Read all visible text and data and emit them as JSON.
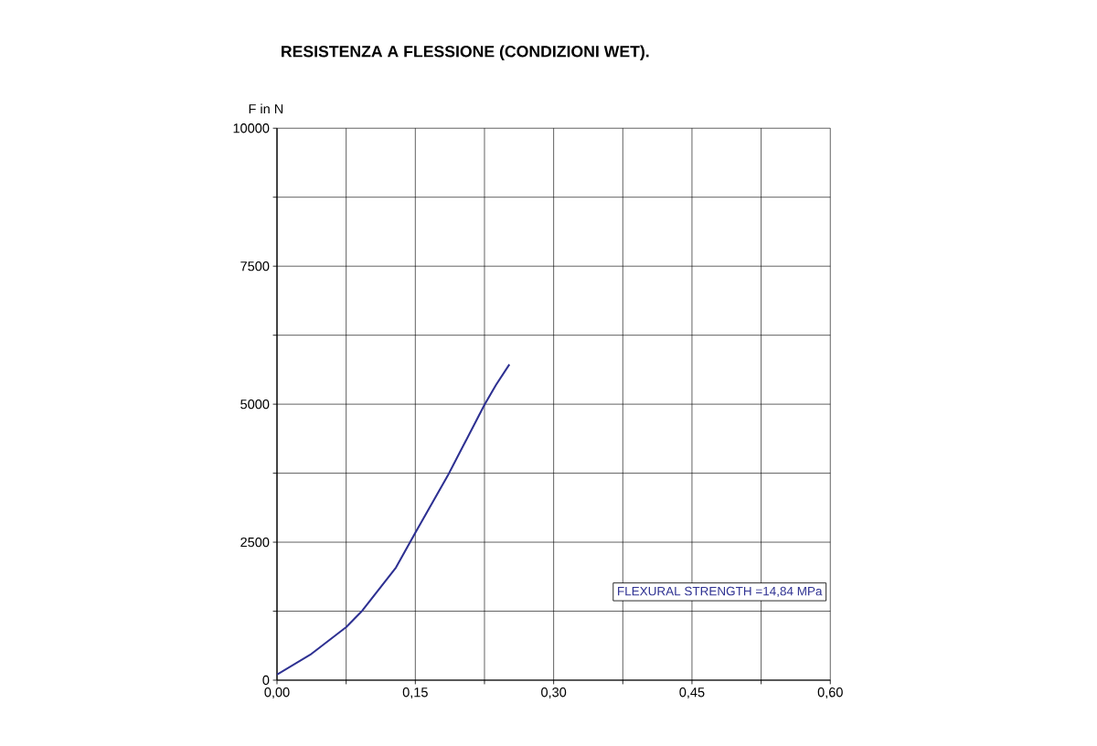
{
  "chart_data": {
    "type": "line",
    "title": "RESISTENZA A FLESSIONE (CONDIZIONI WET).",
    "ylabel": "F in N",
    "annotations": [
      "FLEXURAL STRENGTH =14,84 MPa"
    ],
    "x": [
      0,
      0.036,
      0.075,
      0.0925,
      0.129,
      0.15,
      0.185,
      0.225,
      0.2375,
      0.252
    ],
    "series": [
      {
        "color": "#2e3192",
        "values": [
          100,
          460,
          960,
          1260,
          2040,
          2670,
          3700,
          4990,
          5350,
          5720
        ]
      }
    ],
    "xlim": [
      0,
      0.6
    ],
    "ylim": [
      0,
      10000
    ],
    "xticks": [
      {
        "value": 0,
        "label": "0,00"
      },
      {
        "value": 0.075,
        "label": null
      },
      {
        "value": 0.15,
        "label": "0,15"
      },
      {
        "value": 0.225,
        "label": null
      },
      {
        "value": 0.3,
        "label": "0,30"
      },
      {
        "value": 0.375,
        "label": null
      },
      {
        "value": 0.45,
        "label": "0,45"
      },
      {
        "value": 0.525,
        "label": null
      },
      {
        "value": 0.6,
        "label": "0,60"
      }
    ],
    "yticks": [
      0,
      {
        "value": 1250,
        "label": null
      },
      2500,
      {
        "value": 3750,
        "label": null
      },
      5000,
      {
        "value": 6250,
        "label": null
      },
      7500,
      {
        "value": 8750,
        "label": null
      },
      10000
    ],
    "grid": true,
    "marker": "none",
    "line_style": "solid"
  }
}
